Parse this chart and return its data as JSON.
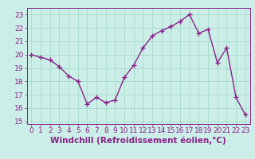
{
  "x": [
    0,
    1,
    2,
    3,
    4,
    5,
    6,
    7,
    8,
    9,
    10,
    11,
    12,
    13,
    14,
    15,
    16,
    17,
    18,
    19,
    20,
    21,
    22,
    23
  ],
  "y": [
    20.0,
    19.8,
    19.6,
    19.1,
    18.4,
    18.0,
    16.3,
    16.8,
    16.4,
    16.6,
    18.3,
    19.2,
    20.5,
    21.4,
    21.8,
    22.1,
    22.5,
    23.0,
    21.6,
    21.9,
    19.4,
    20.5,
    16.8,
    15.5
  ],
  "line_color": "#882288",
  "marker": "+",
  "marker_size": 4,
  "bg_color": "#cceee8",
  "grid_color": "#aaddcc",
  "xlabel": "Windchill (Refroidissement éolien,°C)",
  "ylim": [
    14.8,
    23.5
  ],
  "xlim": [
    -0.5,
    23.5
  ],
  "yticks": [
    15,
    16,
    17,
    18,
    19,
    20,
    21,
    22,
    23
  ],
  "xticks": [
    0,
    1,
    2,
    3,
    4,
    5,
    6,
    7,
    8,
    9,
    10,
    11,
    12,
    13,
    14,
    15,
    16,
    17,
    18,
    19,
    20,
    21,
    22,
    23
  ],
  "xlabel_fontsize": 7.5,
  "tick_fontsize": 6.5,
  "line_width": 1.0
}
